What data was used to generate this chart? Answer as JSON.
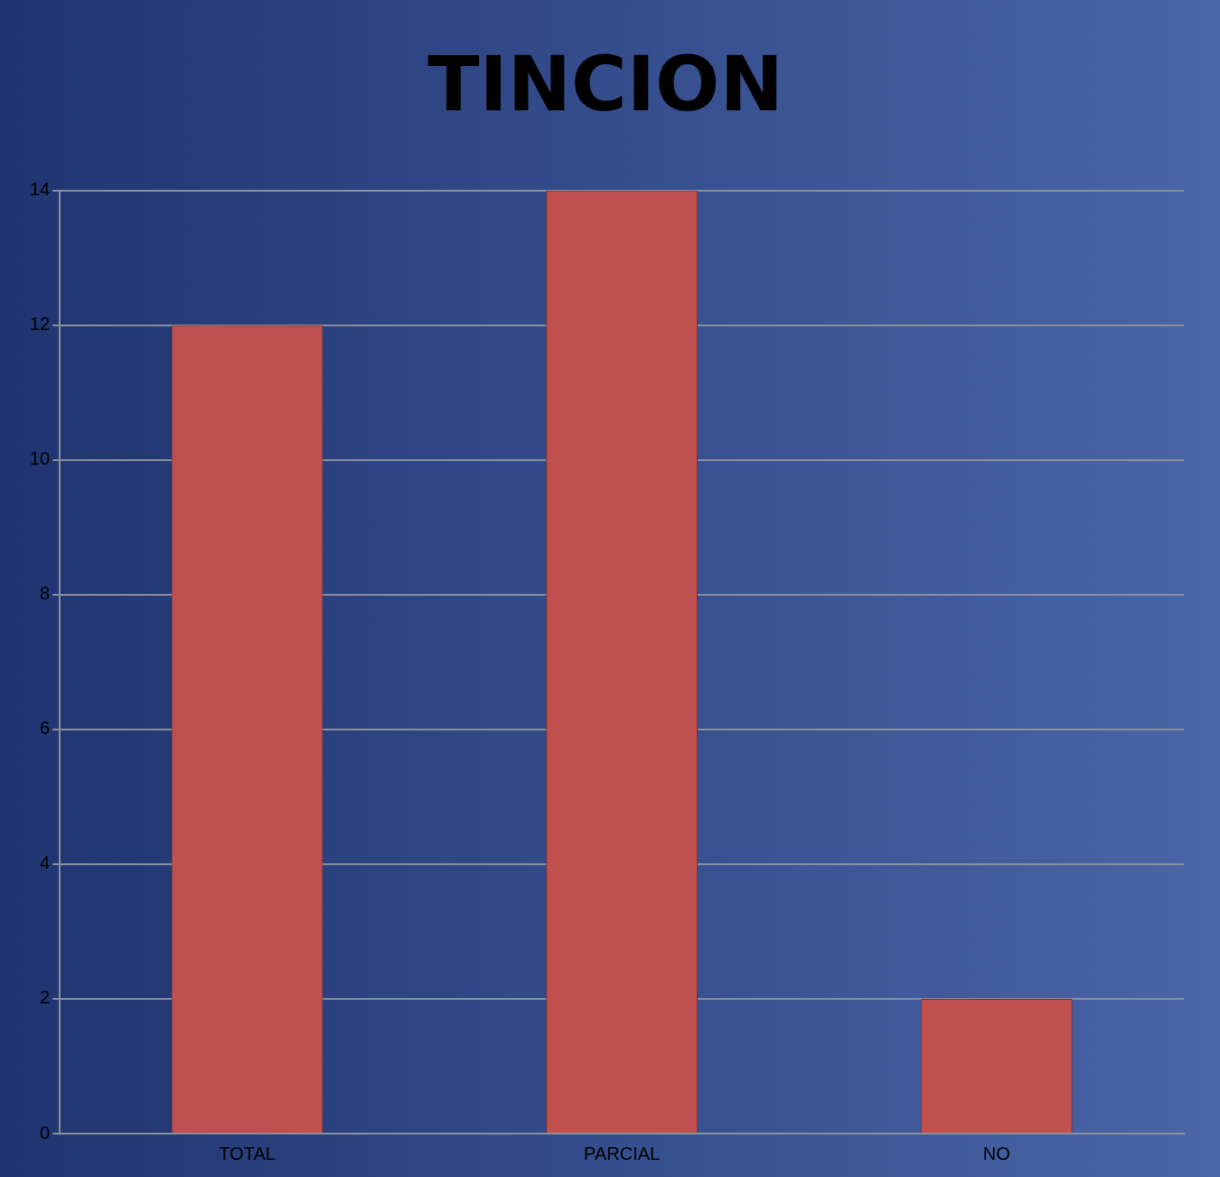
{
  "chart_data": {
    "type": "bar",
    "title": "TINCION",
    "categories": [
      "TOTAL",
      "PARCIAL",
      "NO"
    ],
    "values": [
      12,
      14,
      2
    ],
    "color": "#c0504d",
    "ylim": [
      0,
      14
    ],
    "yticks": [
      0,
      2,
      4,
      6,
      8,
      10,
      12,
      14
    ],
    "grid": "y"
  }
}
